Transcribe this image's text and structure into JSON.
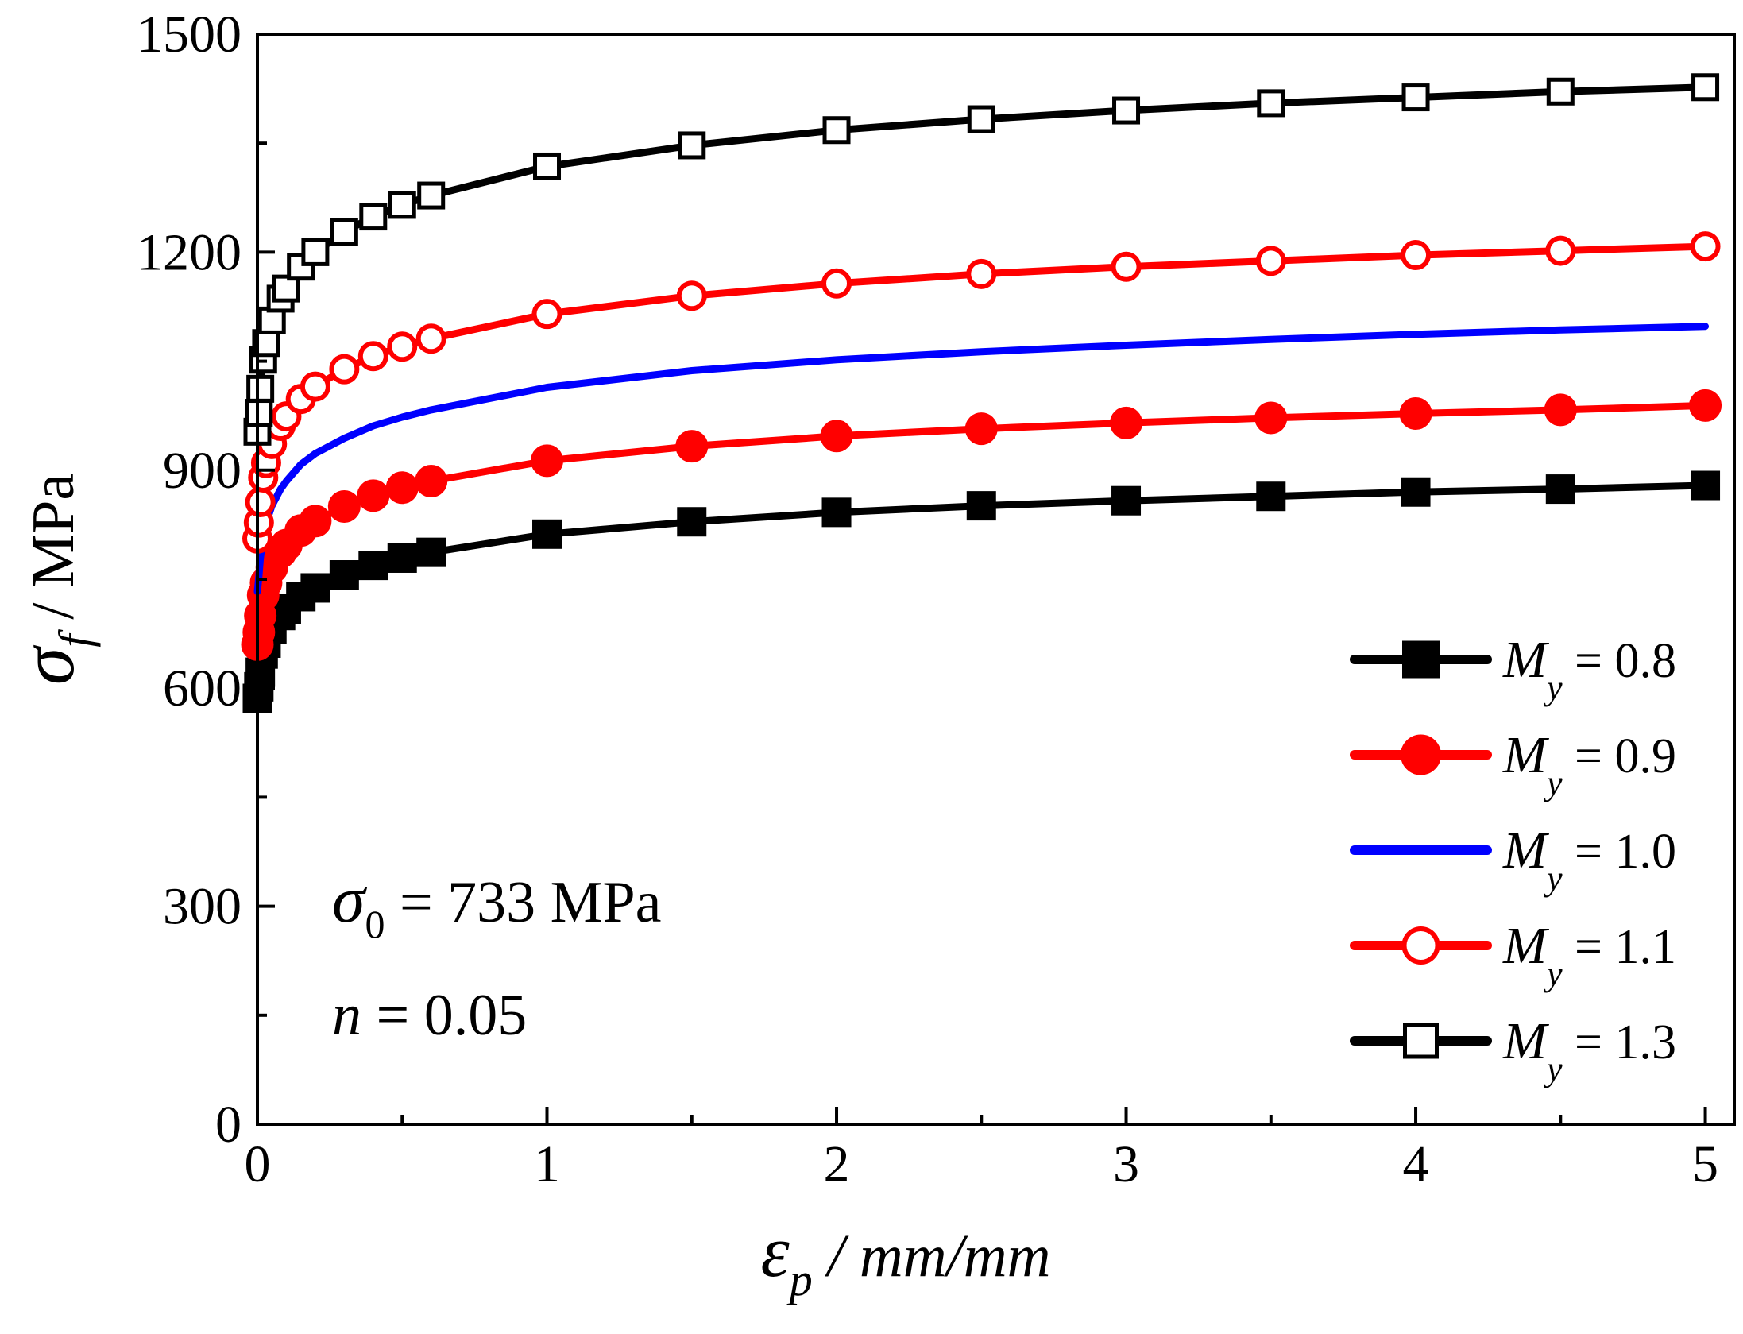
{
  "chart_data": {
    "type": "line",
    "title": "",
    "xlabel": {
      "symbol": "ε",
      "sub": "p",
      "unit": " / mm/mm"
    },
    "ylabel": {
      "symbol": "σ",
      "sub": "f",
      "unit": " / MPa"
    },
    "xlim": [
      0,
      5.1
    ],
    "ylim": [
      0,
      1500
    ],
    "x_ticks": [
      0,
      1,
      2,
      3,
      4,
      5
    ],
    "x_minor_ticks": [
      0.5,
      1.5,
      2.5,
      3.5,
      4.5
    ],
    "y_ticks": [
      0,
      300,
      600,
      900,
      1200,
      1500
    ],
    "y_minor_ticks": [
      150,
      450,
      750,
      1050,
      1350
    ],
    "legend_position": "bottom-right",
    "annotations": [
      {
        "symbol": "σ",
        "sub": "0",
        "text": " = 733 MPa"
      },
      {
        "symbol": "n",
        "sub": "",
        "text": " = 0.05"
      }
    ],
    "series": [
      {
        "name": "My = 0.8",
        "label_symbol": "M",
        "label_sub": "y",
        "label_value": " = 0.8",
        "color": "#000000",
        "marker": "filled-square",
        "x": [
          0,
          0.005,
          0.01,
          0.02,
          0.03,
          0.05,
          0.08,
          0.1,
          0.15,
          0.2,
          0.3,
          0.4,
          0.5,
          0.6,
          1.0,
          1.5,
          2.0,
          2.5,
          3.0,
          3.5,
          4.0,
          4.5,
          5.0
        ],
        "y": [
          586,
          602,
          622,
          647,
          662,
          681,
          700,
          709,
          726,
          738,
          756,
          769,
          779,
          787,
          812,
          829,
          842,
          851,
          858,
          864,
          870,
          874,
          879
        ]
      },
      {
        "name": "My = 0.9",
        "label_symbol": "M",
        "label_sub": "y",
        "label_value": " = 0.9",
        "color": "#ff0000",
        "marker": "filled-circle",
        "x": [
          0,
          0.005,
          0.01,
          0.02,
          0.03,
          0.05,
          0.08,
          0.1,
          0.15,
          0.2,
          0.3,
          0.4,
          0.5,
          0.6,
          1.0,
          1.5,
          2.0,
          2.5,
          3.0,
          3.5,
          4.0,
          4.5,
          5.0
        ],
        "y": [
          660,
          677,
          700,
          728,
          745,
          766,
          787,
          797,
          817,
          830,
          850,
          865,
          876,
          885,
          913,
          933,
          947,
          957,
          965,
          972,
          978,
          983,
          989
        ]
      },
      {
        "name": "My = 1.0",
        "label_symbol": "M",
        "label_sub": "y",
        "label_value": " = 1.0",
        "color": "#0000ff",
        "marker": "none",
        "x": [
          0,
          0.005,
          0.01,
          0.02,
          0.03,
          0.05,
          0.08,
          0.1,
          0.15,
          0.2,
          0.3,
          0.4,
          0.5,
          0.6,
          1.0,
          1.5,
          2.0,
          2.5,
          3.0,
          3.5,
          4.0,
          4.5,
          5.0
        ],
        "y": [
          733,
          753,
          778,
          809,
          827,
          851,
          874,
          885,
          908,
          923,
          944,
          961,
          973,
          983,
          1014,
          1037,
          1052,
          1063,
          1072,
          1080,
          1087,
          1093,
          1098
        ]
      },
      {
        "name": "My = 1.1",
        "label_symbol": "M",
        "label_sub": "y",
        "label_value": " = 1.1",
        "color": "#ff0000",
        "marker": "open-circle",
        "x": [
          0,
          0.005,
          0.01,
          0.02,
          0.03,
          0.05,
          0.08,
          0.1,
          0.15,
          0.2,
          0.3,
          0.4,
          0.5,
          0.6,
          1.0,
          1.5,
          2.0,
          2.5,
          3.0,
          3.5,
          4.0,
          4.5,
          5.0
        ],
        "y": [
          806,
          828,
          856,
          890,
          910,
          936,
          961,
          974,
          998,
          1015,
          1039,
          1057,
          1070,
          1081,
          1115,
          1140,
          1157,
          1170,
          1180,
          1188,
          1196,
          1202,
          1208
        ]
      },
      {
        "name": "My = 1.3",
        "label_symbol": "M",
        "label_sub": "y",
        "label_value": " = 1.3",
        "color": "#000000",
        "marker": "open-square",
        "x": [
          0,
          0.005,
          0.01,
          0.02,
          0.03,
          0.05,
          0.08,
          0.1,
          0.15,
          0.2,
          0.3,
          0.4,
          0.5,
          0.6,
          1.0,
          1.5,
          2.0,
          2.5,
          3.0,
          3.5,
          4.0,
          4.5,
          5.0
        ],
        "y": [
          953,
          979,
          1012,
          1052,
          1075,
          1106,
          1136,
          1150,
          1180,
          1200,
          1228,
          1249,
          1265,
          1278,
          1318,
          1347,
          1368,
          1383,
          1395,
          1405,
          1413,
          1421,
          1427
        ]
      }
    ]
  }
}
